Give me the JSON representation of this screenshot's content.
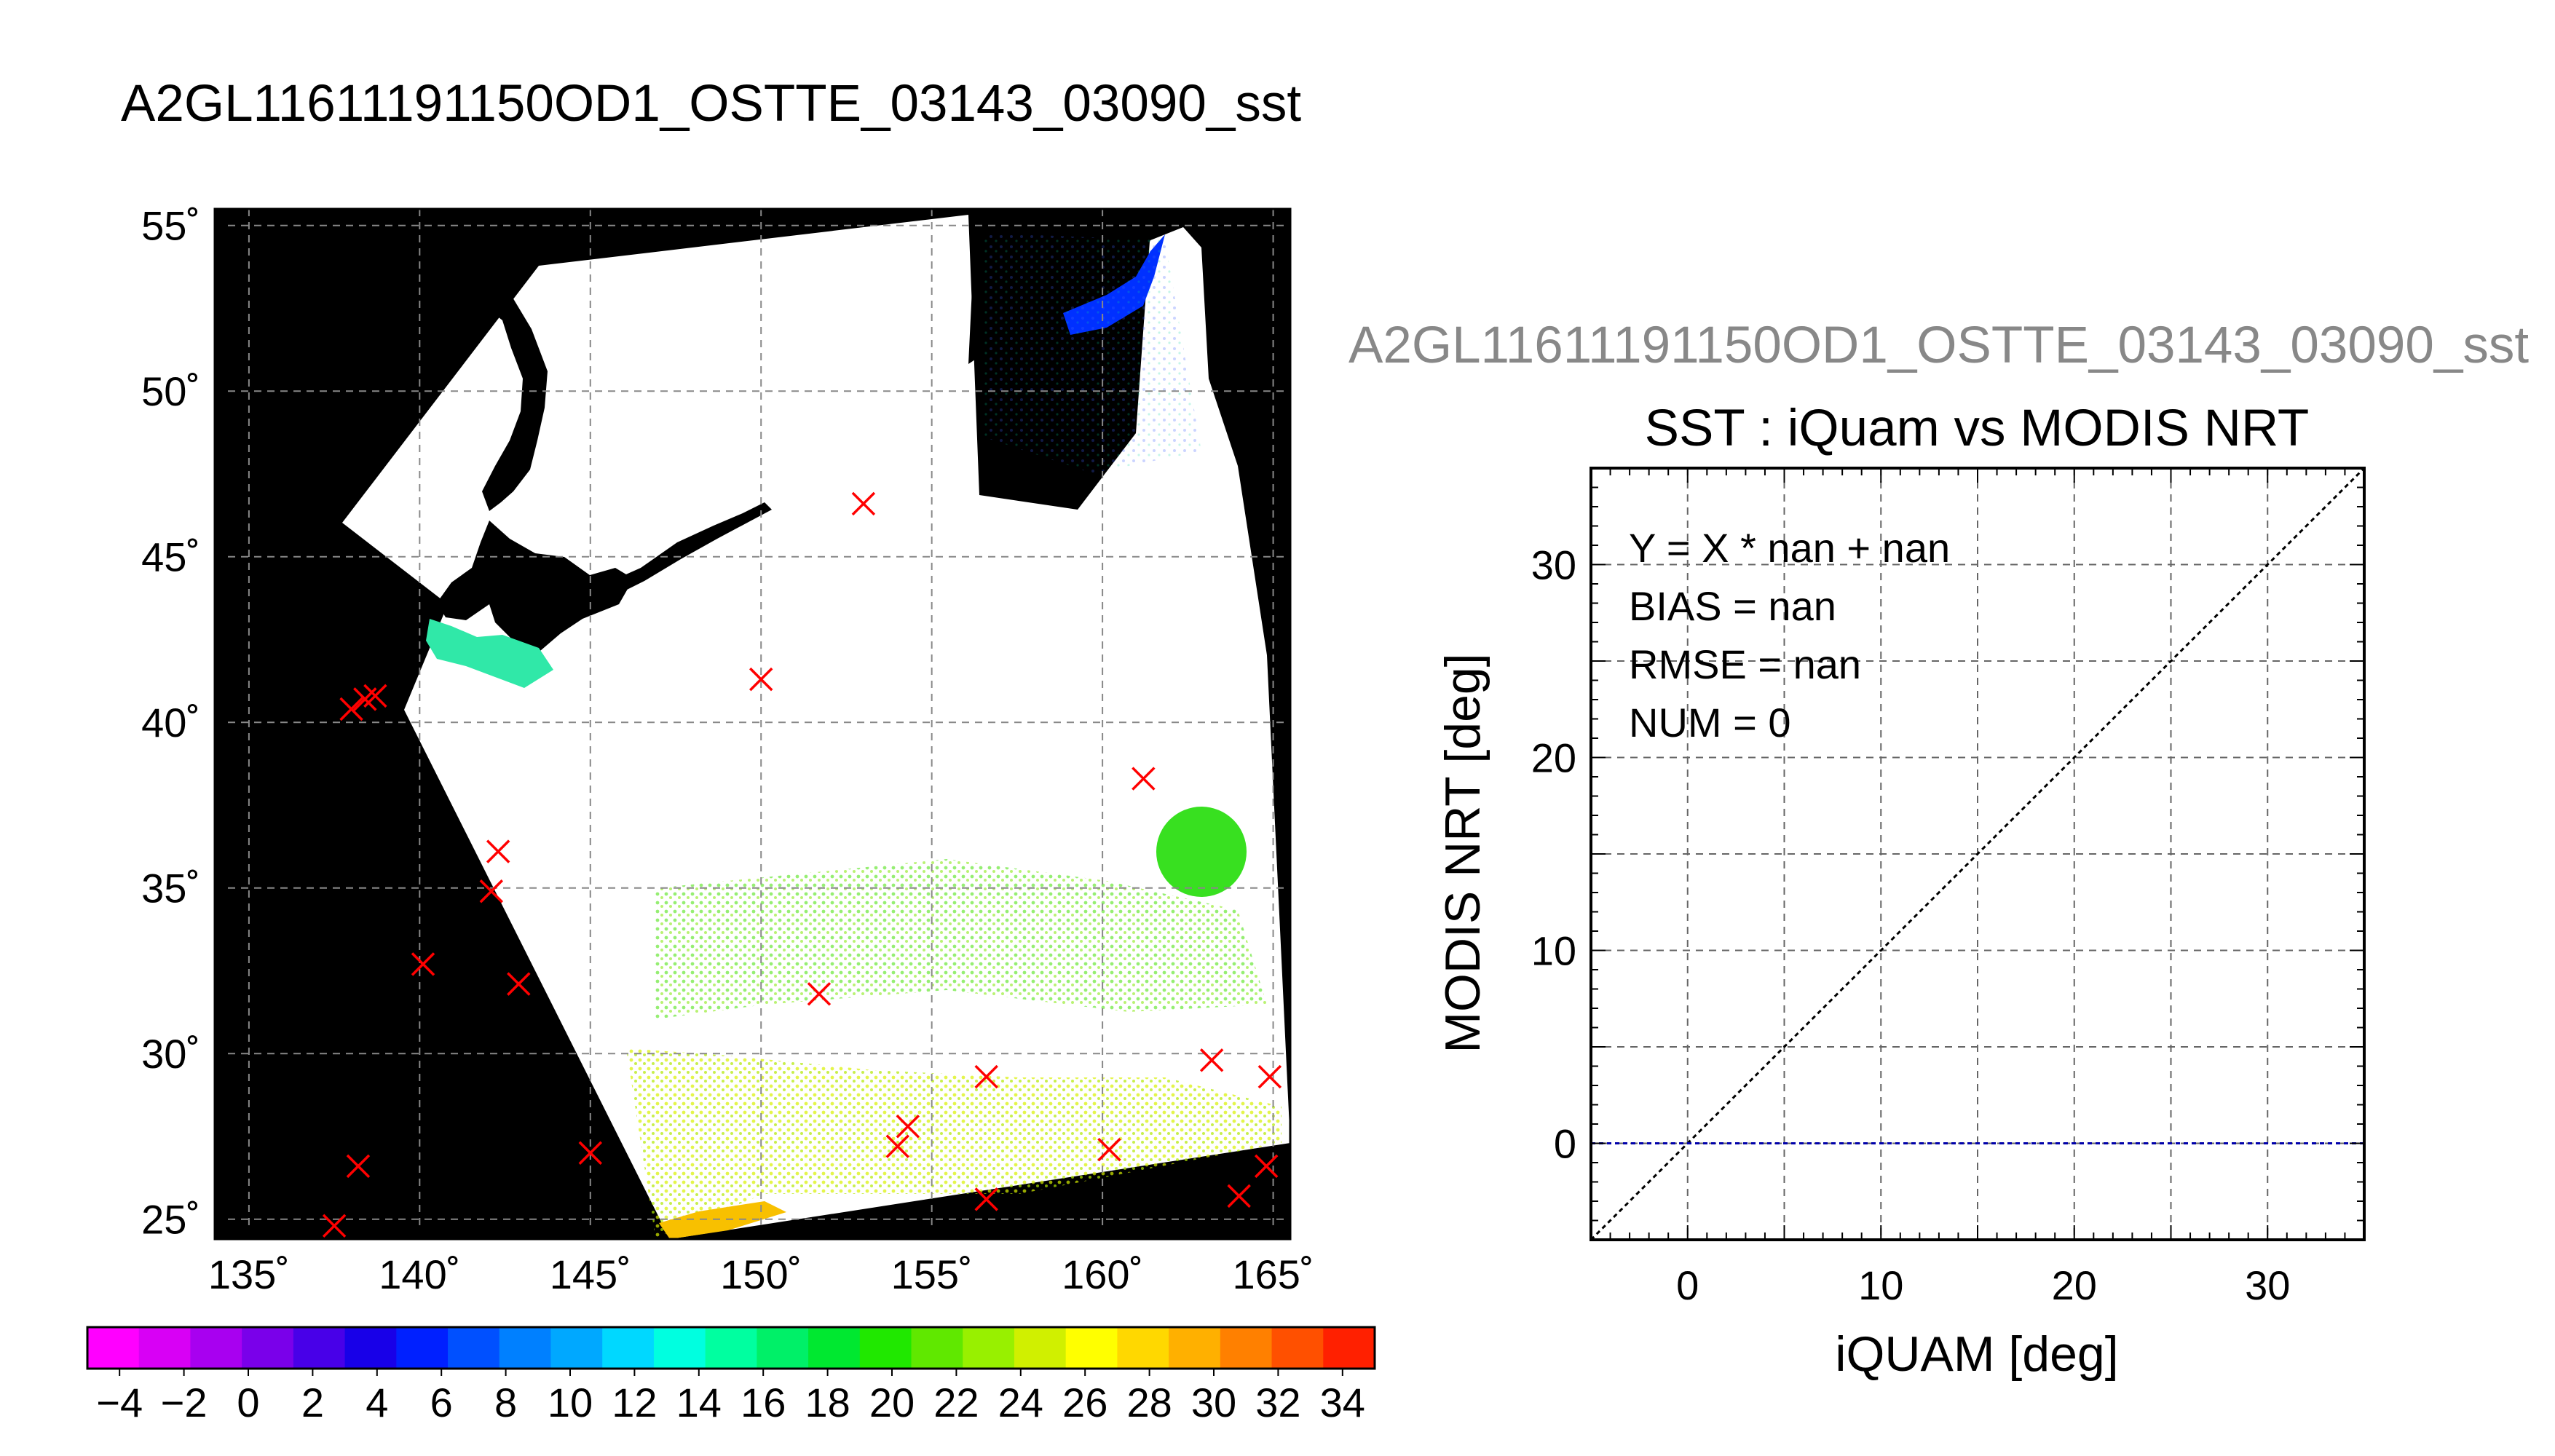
{
  "colors": {
    "background": "#ffffff",
    "map_land": "#000000",
    "cloud_mask": "#ffffff",
    "marker": "#ff0000",
    "zero_line": "#0000aa",
    "one_to_one_line": "#000000",
    "plot_supertitle": "#888888"
  },
  "map": {
    "title": "A2GL11611191150OD1_OSTTE_03143_03090_sst",
    "lon_ticks": [
      135,
      140,
      145,
      150,
      155,
      160,
      165
    ],
    "lat_ticks": [
      25,
      30,
      35,
      40,
      45,
      50,
      55
    ],
    "lon_tick_labels": [
      "135˚",
      "140˚",
      "145˚",
      "150˚",
      "155˚",
      "160˚",
      "165˚"
    ],
    "lat_tick_labels": [
      "25˚",
      "30˚",
      "35˚",
      "40˚",
      "45˚",
      "50˚",
      "55˚"
    ],
    "lon_range": [
      134,
      165.5
    ],
    "lat_range": [
      24.4,
      55.5
    ],
    "grid": true,
    "iquam_points": [
      [
        153.0,
        46.6
      ],
      [
        150.0,
        41.3
      ],
      [
        161.2,
        38.3
      ],
      [
        138.0,
        40.4
      ],
      [
        138.4,
        40.7
      ],
      [
        138.7,
        40.8
      ],
      [
        142.3,
        36.1
      ],
      [
        142.1,
        34.9
      ],
      [
        140.1,
        32.7
      ],
      [
        142.9,
        32.1
      ],
      [
        151.7,
        31.8
      ],
      [
        156.6,
        29.3
      ],
      [
        163.2,
        29.8
      ],
      [
        164.9,
        29.3
      ],
      [
        154.3,
        27.8
      ],
      [
        154.0,
        27.2
      ],
      [
        145.0,
        27.0
      ],
      [
        160.2,
        27.1
      ],
      [
        138.2,
        26.6
      ],
      [
        137.5,
        24.8
      ],
      [
        156.6,
        25.6
      ],
      [
        164.0,
        25.7
      ],
      [
        164.8,
        26.6
      ]
    ]
  },
  "colorbar": {
    "values": [
      -4,
      -2,
      0,
      2,
      4,
      6,
      8,
      10,
      12,
      14,
      16,
      18,
      20,
      22,
      24,
      26,
      28,
      30,
      32,
      34
    ],
    "labels": [
      "−4",
      "−2",
      "0",
      "2",
      "4",
      "6",
      "8",
      "10",
      "12",
      "14",
      "16",
      "18",
      "20",
      "22",
      "24",
      "26",
      "28",
      "30",
      "32",
      "34"
    ],
    "colors": [
      "#ff00ff",
      "#d800f5",
      "#a800f0",
      "#7a00ea",
      "#4800e8",
      "#1800e8",
      "#0020ff",
      "#0050ff",
      "#0080ff",
      "#00a8ff",
      "#00d8ff",
      "#00ffe0",
      "#00ffa0",
      "#00f068",
      "#00e830",
      "#20e800",
      "#60e800",
      "#98f000",
      "#d0f000",
      "#ffff00",
      "#ffd800",
      "#ffb000",
      "#ff8000",
      "#ff5000",
      "#ff2000"
    ]
  },
  "chart_data": {
    "type": "scatter",
    "supertitle": "A2GL11611191150OD1_OSTTE_03143_03090_sst",
    "title": "SST : iQuam vs MODIS NRT",
    "xlabel": "iQUAM [deg]",
    "ylabel": "MODIS NRT [deg]",
    "xlim": [
      -5,
      35
    ],
    "ylim": [
      -5,
      35
    ],
    "xticks": [
      0,
      10,
      20,
      30
    ],
    "yticks": [
      0,
      10,
      20,
      30
    ],
    "grid": true,
    "stats": {
      "line1": "Y = X * nan + nan",
      "line2": "BIAS = nan",
      "line3": "RMSE = nan",
      "line4": "NUM = 0"
    },
    "reference_lines": [
      {
        "kind": "one_to_one",
        "from": [
          -5,
          -5
        ],
        "to": [
          35,
          35
        ]
      },
      {
        "kind": "zero",
        "y": 0
      }
    ],
    "points": []
  }
}
